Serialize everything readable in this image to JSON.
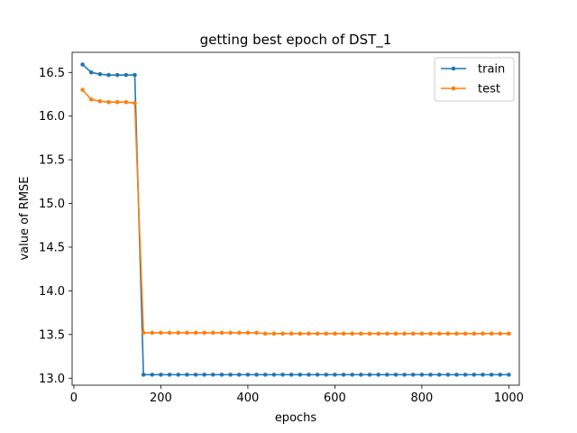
{
  "chart_data": {
    "type": "line",
    "title": "getting best epoch of DST_1",
    "xlabel": "epochs",
    "ylabel": "value of RMSE",
    "xlim": [
      -4,
      1024
    ],
    "ylim": [
      12.92,
      16.73
    ],
    "xticks": [
      0,
      200,
      400,
      600,
      800,
      1000
    ],
    "yticks": [
      13.0,
      13.5,
      14.0,
      14.5,
      15.0,
      15.5,
      16.0,
      16.5
    ],
    "ytick_labels": [
      "13.0",
      "13.5",
      "14.0",
      "14.5",
      "15.0",
      "15.5",
      "16.0",
      "16.5"
    ],
    "legend_position": "top-right",
    "x": [
      20,
      40,
      60,
      80,
      100,
      120,
      140,
      160,
      180,
      200,
      220,
      240,
      260,
      280,
      300,
      320,
      340,
      360,
      380,
      400,
      420,
      440,
      460,
      480,
      500,
      520,
      540,
      560,
      580,
      600,
      620,
      640,
      660,
      680,
      700,
      720,
      740,
      760,
      780,
      800,
      820,
      840,
      860,
      880,
      900,
      920,
      940,
      960,
      980,
      1000
    ],
    "series": [
      {
        "name": "train",
        "color": "#1f77b4",
        "values": [
          16.59,
          16.5,
          16.48,
          16.47,
          16.47,
          16.47,
          16.47,
          13.04,
          13.04,
          13.04,
          13.04,
          13.04,
          13.04,
          13.04,
          13.04,
          13.04,
          13.04,
          13.04,
          13.04,
          13.04,
          13.04,
          13.04,
          13.04,
          13.04,
          13.04,
          13.04,
          13.04,
          13.04,
          13.04,
          13.04,
          13.04,
          13.04,
          13.04,
          13.04,
          13.04,
          13.04,
          13.04,
          13.04,
          13.04,
          13.04,
          13.04,
          13.04,
          13.04,
          13.04,
          13.04,
          13.04,
          13.04,
          13.04,
          13.04,
          13.04
        ]
      },
      {
        "name": "test",
        "color": "#ff7f0e",
        "values": [
          16.3,
          16.19,
          16.17,
          16.16,
          16.16,
          16.16,
          16.15,
          13.52,
          13.52,
          13.52,
          13.52,
          13.52,
          13.52,
          13.52,
          13.52,
          13.52,
          13.52,
          13.52,
          13.52,
          13.52,
          13.52,
          13.51,
          13.51,
          13.51,
          13.51,
          13.51,
          13.51,
          13.51,
          13.51,
          13.51,
          13.51,
          13.51,
          13.51,
          13.51,
          13.51,
          13.51,
          13.51,
          13.51,
          13.51,
          13.51,
          13.51,
          13.51,
          13.51,
          13.51,
          13.51,
          13.51,
          13.51,
          13.51,
          13.51,
          13.51
        ]
      }
    ]
  }
}
